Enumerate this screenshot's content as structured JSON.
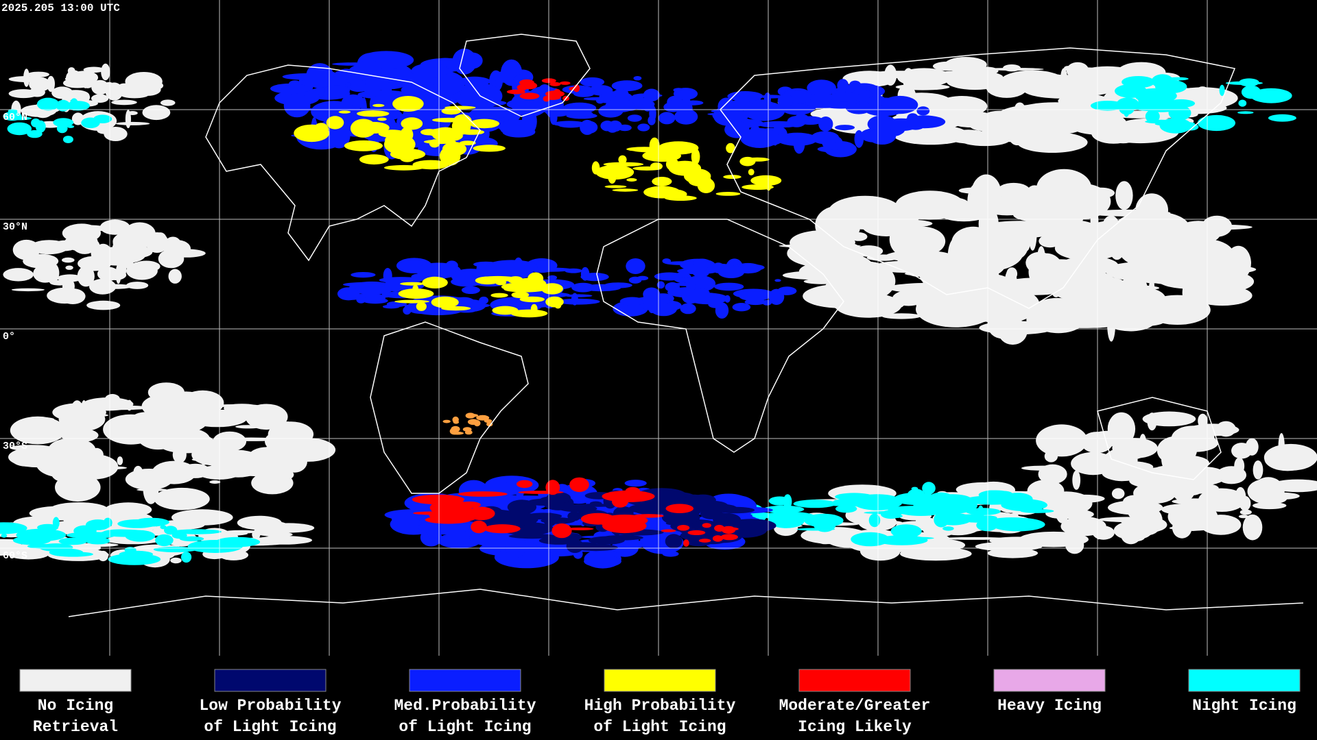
{
  "timestamp": "2025.205 13:00 UTC",
  "latitude_labels": [
    "60°N",
    "30°N",
    "0°",
    "30°S",
    "60°S"
  ],
  "legend": [
    {
      "color": "#f0f0f0",
      "label": [
        "No Icing",
        "Retrieval"
      ]
    },
    {
      "color": "#00086e",
      "label": [
        "Low Probability",
        "of Light Icing"
      ]
    },
    {
      "color": "#0a1eff",
      "label": [
        "Med.Probability",
        "of Light Icing"
      ]
    },
    {
      "color": "#ffff00",
      "label": [
        "High Probability",
        "of Light Icing"
      ]
    },
    {
      "color": "#ff0000",
      "label": [
        "Moderate/Greater",
        "Icing Likely"
      ]
    },
    {
      "color": "#e8a8e8",
      "label": [
        "Heavy Icing"
      ]
    },
    {
      "color": "#00ffff",
      "label": [
        "Night Icing"
      ]
    }
  ]
}
